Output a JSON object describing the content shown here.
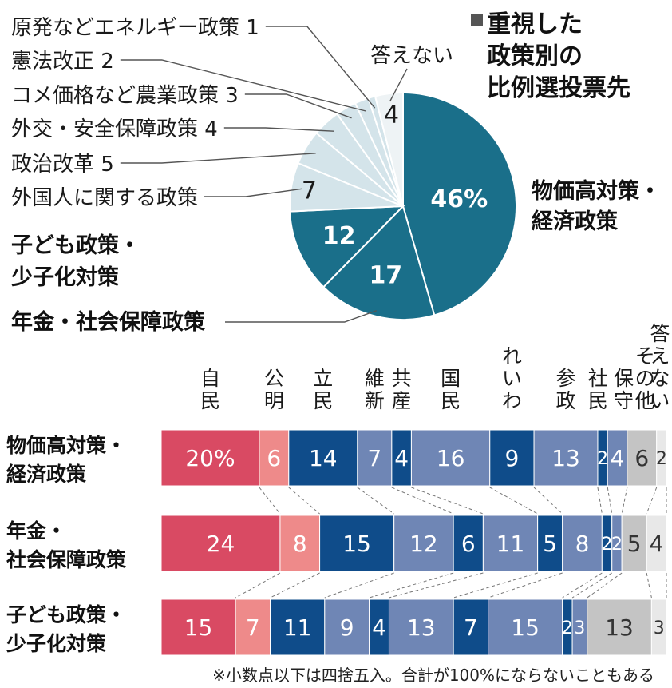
{
  "chart_data": [
    {
      "type": "pie",
      "title": "重視した政策別の比例選投票先",
      "unit_note": "%",
      "slices": [
        {
          "label": "物価高対策・経済政策",
          "value": 46,
          "display": "46%",
          "color": "#1a6f8a",
          "label_color": "#ffffff",
          "callout": false
        },
        {
          "label": "年金・社会保障政策",
          "value": 17,
          "display": "17",
          "color": "#1a6f8a",
          "label_color": "#ffffff",
          "callout": true
        },
        {
          "label": "子ども政策・少子化対策",
          "value": 12,
          "display": "12",
          "color": "#1a6f8a",
          "label_color": "#ffffff",
          "callout": false
        },
        {
          "label": "外国人に関する政策",
          "value": 7,
          "display": "7",
          "color": "#d4e4ea",
          "label_color": "#1a1a1a",
          "callout": true
        },
        {
          "label": "政治改革",
          "value": 5,
          "display": "5",
          "color": "#d4e4ea",
          "label_color": "#1a1a1a",
          "callout": true
        },
        {
          "label": "外交・安全保障政策",
          "value": 4,
          "display": "4",
          "color": "#d4e4ea",
          "label_color": "#1a1a1a",
          "callout": true
        },
        {
          "label": "コメ価格など農業政策",
          "value": 3,
          "display": "3",
          "color": "#d4e4ea",
          "label_color": "#1a1a1a",
          "callout": true
        },
        {
          "label": "憲法改正",
          "value": 2,
          "display": "2",
          "color": "#d4e4ea",
          "label_color": "#1a1a1a",
          "callout": true
        },
        {
          "label": "原発などエネルギー政策",
          "value": 1,
          "display": "1",
          "color": "#d4e4ea",
          "label_color": "#1a1a1a",
          "callout": true
        },
        {
          "label": "答えない",
          "value": 4,
          "display": "4",
          "color": "#eef3f5",
          "label_color": "#1a1a1a",
          "callout": false
        }
      ]
    },
    {
      "type": "bar",
      "orientation": "horizontal-stacked",
      "parties": [
        {
          "label": "自民",
          "color": "#d94a63"
        },
        {
          "label": "公明",
          "color": "#ee8a8a"
        },
        {
          "label": "立民",
          "color": "#0f4c8a"
        },
        {
          "label": "維新",
          "color": "#6f86b5"
        },
        {
          "label": "共産",
          "color": "#0f4c8a"
        },
        {
          "label": "国民",
          "color": "#6f86b5"
        },
        {
          "label": "れいわ",
          "color": "#0f4c8a"
        },
        {
          "label": "参政",
          "color": "#6f86b5"
        },
        {
          "label": "社民",
          "color": "#0f4c8a"
        },
        {
          "label": "保守",
          "color": "#6f86b5"
        },
        {
          "label": "その他",
          "color": "#c4c4c4"
        },
        {
          "label": "答えない",
          "color": "#e8e8e8"
        }
      ],
      "rows": [
        {
          "label": "物価高対策・経済政策",
          "values": [
            20,
            6,
            14,
            7,
            4,
            16,
            9,
            13,
            2,
            4,
            6,
            2
          ],
          "first_suffix": "%"
        },
        {
          "label": "年金・社会保障政策",
          "values": [
            24,
            8,
            15,
            12,
            6,
            11,
            5,
            8,
            2,
            2,
            5,
            4
          ],
          "first_suffix": ""
        },
        {
          "label": "子ども政策・少子化対策",
          "values": [
            15,
            7,
            11,
            9,
            4,
            13,
            7,
            15,
            2,
            3,
            13,
            3
          ],
          "first_suffix": ""
        }
      ],
      "footnote": "※小数点以下は四捨五入。合計が100%にならないこともある"
    }
  ]
}
